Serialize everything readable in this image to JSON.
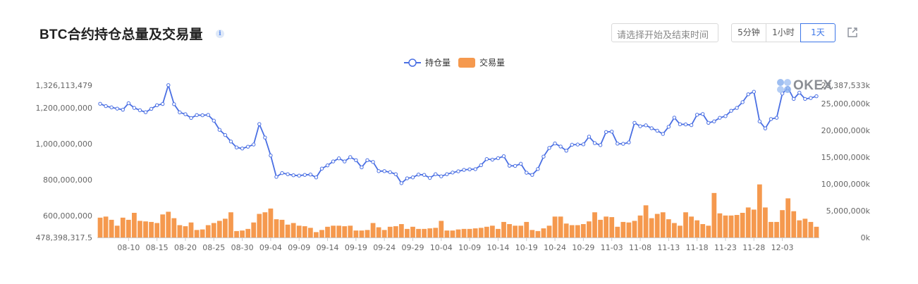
{
  "header": {
    "title": "BTC合约持仓总量及交易量",
    "info_icon": "i",
    "date_placeholder": "请选择开始及结束时间",
    "range_buttons": [
      "5分钟",
      "1小时",
      "1天"
    ],
    "active_range": "1天"
  },
  "watermark": "OKEX",
  "colors": {
    "line": "#4a6fe3",
    "bar": "#f5994e",
    "accent": "#3c76e8"
  },
  "chart_data": {
    "type": "line+bar",
    "title": "BTC合约持仓总量及交易量",
    "legend": [
      {
        "name": "持仓量",
        "kind": "line"
      },
      {
        "name": "交易量",
        "kind": "bar"
      }
    ],
    "legend_position": "top-center",
    "x_tick_labels": [
      "08-10",
      "08-15",
      "08-20",
      "08-25",
      "08-30",
      "09-04",
      "09-09",
      "09-14",
      "09-19",
      "09-24",
      "09-29",
      "10-04",
      "10-09",
      "10-14",
      "10-19",
      "10-24",
      "10-29",
      "11-03",
      "11-08",
      "11-13",
      "11-18",
      "11-23",
      "11-28",
      "12-03"
    ],
    "x_start_date": "08-05",
    "left_axis": {
      "ylim": [
        478398317.5,
        1326113479
      ],
      "tick_values": [
        478398317.5,
        600000000,
        800000000,
        1000000000,
        1200000000,
        1326113479
      ],
      "tick_labels": [
        "478,398,317.5",
        "600,000,000",
        "800,000,000",
        "1,000,000,000",
        "1,200,000,000",
        "1,326,113,479"
      ]
    },
    "right_axis": {
      "ylim": [
        0,
        28387533000
      ],
      "tick_values": [
        0,
        5000000000,
        10000000000,
        15000000000,
        20000000000,
        25000000000,
        28387533000
      ],
      "tick_labels": [
        "0k",
        "5,000,000k",
        "10,000,000k",
        "15,000,000k",
        "20,000,000k",
        "25,000,000k",
        "28,387,533k"
      ]
    },
    "series": [
      {
        "name": "持仓量",
        "axis": "left",
        "values": [
          1223000000,
          1210000000,
          1203000000,
          1196000000,
          1190000000,
          1226000000,
          1200000000,
          1187000000,
          1176000000,
          1195000000,
          1215000000,
          1222000000,
          1327000000,
          1221000000,
          1175000000,
          1165000000,
          1144000000,
          1160000000,
          1159000000,
          1161000000,
          1129000000,
          1078000000,
          1049000000,
          1013000000,
          980000000,
          974000000,
          984000000,
          996000000,
          1110000000,
          1035000000,
          935000000,
          816000000,
          837000000,
          831000000,
          825000000,
          823000000,
          827000000,
          829000000,
          813000000,
          862000000,
          880000000,
          902000000,
          919000000,
          902000000,
          926000000,
          909000000,
          869000000,
          909000000,
          899000000,
          848000000,
          848000000,
          842000000,
          831000000,
          781000000,
          808000000,
          813000000,
          829000000,
          827000000,
          810000000,
          831000000,
          819000000,
          831000000,
          840000000,
          847000000,
          855000000,
          858000000,
          859000000,
          881000000,
          915000000,
          912000000,
          920000000,
          931000000,
          878000000,
          877000000,
          889000000,
          839000000,
          827000000,
          860000000,
          929000000,
          977000000,
          1002000000,
          985000000,
          962000000,
          995000000,
          996000000,
          997000000,
          1040000000,
          1004000000,
          993000000,
          1066000000,
          1068000000,
          1001000000,
          1000000000,
          1008000000,
          1117000000,
          1098000000,
          1103000000,
          1087000000,
          1073000000,
          1055000000,
          1095000000,
          1146000000,
          1109000000,
          1108000000,
          1104000000,
          1162000000,
          1166000000,
          1117000000,
          1125000000,
          1145000000,
          1154000000,
          1184000000,
          1200000000,
          1232000000,
          1276000000,
          1290000000,
          1125000000,
          1086000000,
          1138000000,
          1145000000,
          1280000000,
          1311000000,
          1250000000,
          1285000000,
          1250000000,
          1255000000,
          1265000000
        ]
      },
      {
        "name": "交易量",
        "axis": "right",
        "values": [
          3700000000,
          3900000000,
          3300000000,
          2200000000,
          3700000000,
          3300000000,
          4600000000,
          3100000000,
          3000000000,
          2900000000,
          2700000000,
          4300000000,
          4800000000,
          3600000000,
          2300000000,
          2100000000,
          2800000000,
          1400000000,
          1500000000,
          2300000000,
          2700000000,
          3100000000,
          3500000000,
          4700000000,
          1200000000,
          1300000000,
          1600000000,
          2800000000,
          4400000000,
          4700000000,
          5400000000,
          3400000000,
          3300000000,
          2400000000,
          2700000000,
          2200000000,
          2100000000,
          1800000000,
          1000000000,
          1400000000,
          2000000000,
          2200000000,
          2200000000,
          2100000000,
          2200000000,
          1300000000,
          1300000000,
          1400000000,
          2700000000,
          1900000000,
          1400000000,
          2000000000,
          2100000000,
          2500000000,
          1600000000,
          2000000000,
          1600000000,
          1600000000,
          1700000000,
          1800000000,
          3100000000,
          1300000000,
          1300000000,
          1500000000,
          1600000000,
          1600000000,
          1700000000,
          1800000000,
          2000000000,
          2200000000,
          1600000000,
          2900000000,
          2500000000,
          2200000000,
          2200000000,
          2900000000,
          1400000000,
          1200000000,
          1700000000,
          2200000000,
          3900000000,
          3900000000,
          2600000000,
          2300000000,
          2300000000,
          2500000000,
          3000000000,
          4700000000,
          3300000000,
          3900000000,
          3800000000,
          2000000000,
          2900000000,
          2800000000,
          3100000000,
          4100000000,
          6000000000,
          3600000000,
          4400000000,
          4700000000,
          3400000000,
          2700000000,
          2200000000,
          4700000000,
          3900000000,
          3200000000,
          2500000000,
          2200000000,
          8300000000,
          4500000000,
          4100000000,
          4100000000,
          4200000000,
          4600000000,
          5600000000,
          5200000000,
          9900000000,
          5600000000,
          2900000000,
          2900000000,
          5100000000,
          7300000000,
          4900000000,
          3200000000,
          3500000000,
          2900000000,
          2000000000
        ]
      }
    ]
  }
}
